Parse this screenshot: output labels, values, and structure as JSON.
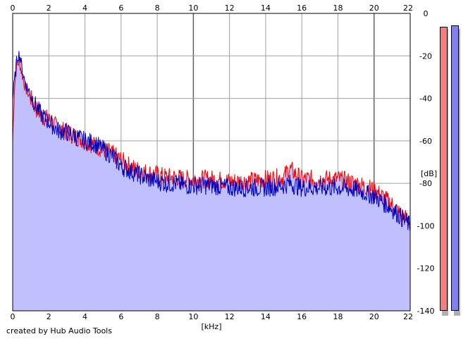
{
  "chart_data": {
    "type": "area",
    "xlabel": "[kHz]",
    "ylabel": "[dB]",
    "xlim": [
      0,
      22
    ],
    "ylim": [
      -140,
      0
    ],
    "x_ticks": [
      0,
      2,
      4,
      6,
      8,
      10,
      12,
      14,
      16,
      18,
      20,
      22
    ],
    "y_ticks": [
      0,
      -20,
      -40,
      -60,
      -80,
      -100,
      -120,
      -140
    ],
    "grid": true,
    "series": [
      {
        "color": "#ff0000",
        "x": [
          0,
          0.1,
          0.2,
          0.3,
          0.4,
          0.5,
          0.7,
          1.0,
          1.3,
          1.6,
          2.0,
          2.5,
          3.0,
          3.5,
          4.0,
          4.5,
          5.0,
          5.5,
          6.0,
          6.5,
          7.0,
          7.5,
          8.0,
          8.5,
          9.0,
          9.5,
          10.0,
          11.0,
          12.0,
          13.0,
          14.0,
          15.0,
          15.3,
          16.0,
          17.0,
          18.0,
          19.0,
          20.0,
          21.0,
          21.5,
          22.0
        ],
        "y": [
          -60,
          -35,
          -26,
          -23,
          -24,
          -28,
          -35,
          -40,
          -45,
          -48,
          -50,
          -54,
          -56,
          -58,
          -60,
          -62,
          -64,
          -66,
          -69,
          -72,
          -74,
          -75,
          -76,
          -77,
          -77,
          -78,
          -78,
          -78,
          -79,
          -79,
          -78,
          -77,
          -73,
          -78,
          -78,
          -78,
          -80,
          -83,
          -90,
          -95,
          -98
        ]
      },
      {
        "color": "#0000c0",
        "x": [
          0,
          0.1,
          0.2,
          0.3,
          0.4,
          0.5,
          0.7,
          1.0,
          1.3,
          1.6,
          2.0,
          2.5,
          3.0,
          3.5,
          4.0,
          4.5,
          5.0,
          5.5,
          6.0,
          6.5,
          7.0,
          7.5,
          8.0,
          8.5,
          9.0,
          9.5,
          10.0,
          11.0,
          12.0,
          13.0,
          14.0,
          15.0,
          15.3,
          16.0,
          17.0,
          18.0,
          19.0,
          20.0,
          21.0,
          21.5,
          22.0
        ],
        "y": [
          -40,
          -32,
          -24,
          -19,
          -20,
          -25,
          -33,
          -38,
          -44,
          -48,
          -51,
          -55,
          -56,
          -58,
          -60,
          -61,
          -64,
          -67,
          -72,
          -74,
          -76,
          -78,
          -79,
          -80,
          -80,
          -81,
          -81,
          -81,
          -82,
          -82,
          -82,
          -81,
          -80,
          -82,
          -82,
          -82,
          -83,
          -86,
          -92,
          -96,
          -100
        ]
      }
    ],
    "fill_color": "#c0c0ff",
    "credit": "created by Hub Audio Tools",
    "meters": [
      {
        "color": "#f08080"
      },
      {
        "color": "#8080f0"
      }
    ]
  }
}
